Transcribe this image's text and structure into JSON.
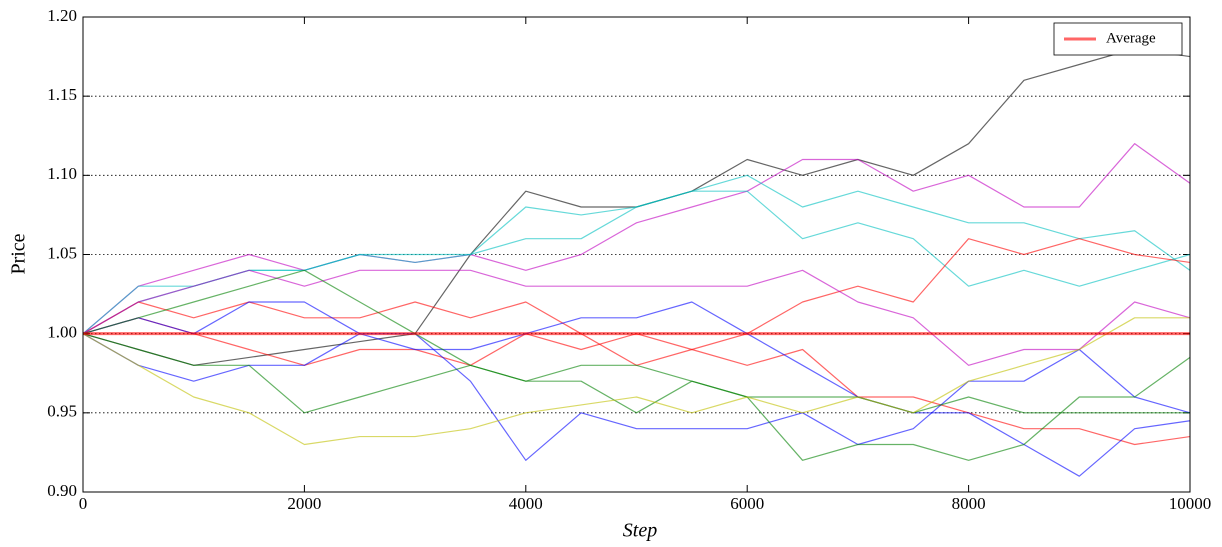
{
  "chart_data": {
    "type": "line",
    "xlabel": "Step",
    "ylabel": "Price",
    "x": [
      0,
      500,
      1000,
      1500,
      2000,
      2500,
      3000,
      3500,
      4000,
      4500,
      5000,
      5500,
      6000,
      6500,
      7000,
      7500,
      8000,
      8500,
      9000,
      9500,
      10000
    ],
    "series": [
      {
        "color": "#000000",
        "values": [
          1.0,
          0.99,
          0.98,
          0.985,
          0.99,
          0.995,
          1.0,
          1.05,
          1.09,
          1.08,
          1.08,
          1.09,
          1.11,
          1.1,
          1.11,
          1.1,
          1.12,
          1.16,
          1.17,
          1.18,
          1.175
        ]
      },
      {
        "color": "#bf00bf",
        "values": [
          1.0,
          1.03,
          1.04,
          1.05,
          1.04,
          1.05,
          1.045,
          1.05,
          1.04,
          1.05,
          1.07,
          1.08,
          1.09,
          1.11,
          1.11,
          1.09,
          1.1,
          1.08,
          1.08,
          1.12,
          1.095
        ]
      },
      {
        "color": "#00bfbf",
        "values": [
          1.0,
          1.03,
          1.03,
          1.04,
          1.04,
          1.05,
          1.045,
          1.05,
          1.08,
          1.075,
          1.08,
          1.09,
          1.1,
          1.08,
          1.09,
          1.08,
          1.07,
          1.07,
          1.06,
          1.065,
          1.04
        ]
      },
      {
        "color": "#00bfbf",
        "values": [
          1.0,
          1.02,
          1.03,
          1.04,
          1.04,
          1.05,
          1.05,
          1.05,
          1.06,
          1.06,
          1.08,
          1.09,
          1.09,
          1.06,
          1.07,
          1.06,
          1.03,
          1.04,
          1.03,
          1.04,
          1.05
        ]
      },
      {
        "color": "#ff0000",
        "values": [
          1.0,
          1.01,
          1.0,
          0.99,
          0.98,
          0.99,
          0.99,
          0.98,
          1.0,
          0.99,
          1.0,
          0.99,
          1.0,
          1.02,
          1.03,
          1.02,
          1.06,
          1.05,
          1.06,
          1.05,
          1.045
        ]
      },
      {
        "color": "#ff0000",
        "values": [
          1.0,
          1.02,
          1.01,
          1.02,
          1.01,
          1.01,
          1.02,
          1.01,
          1.02,
          1.0,
          0.98,
          0.99,
          0.98,
          0.99,
          0.96,
          0.96,
          0.95,
          0.94,
          0.94,
          0.93,
          0.935
        ]
      },
      {
        "color": "#bf00bf",
        "values": [
          1.0,
          1.02,
          1.03,
          1.04,
          1.03,
          1.04,
          1.04,
          1.04,
          1.03,
          1.03,
          1.03,
          1.03,
          1.03,
          1.04,
          1.02,
          1.01,
          0.98,
          0.99,
          0.99,
          1.02,
          1.01
        ]
      },
      {
        "color": "#0000ff",
        "values": [
          1.0,
          0.98,
          0.97,
          0.98,
          0.98,
          1.0,
          1.0,
          0.97,
          0.92,
          0.95,
          0.94,
          0.94,
          0.94,
          0.95,
          0.93,
          0.94,
          0.97,
          0.97,
          0.99,
          0.96,
          0.95
        ]
      },
      {
        "color": "#0000ff",
        "values": [
          1.0,
          1.01,
          1.0,
          1.02,
          1.02,
          1.0,
          0.99,
          0.99,
          1.0,
          1.01,
          1.01,
          1.02,
          1.0,
          0.98,
          0.96,
          0.95,
          0.95,
          0.93,
          0.91,
          0.94,
          0.945
        ]
      },
      {
        "color": "#008000",
        "values": [
          1.0,
          0.99,
          0.98,
          0.98,
          0.95,
          0.96,
          0.97,
          0.98,
          0.97,
          0.97,
          0.95,
          0.97,
          0.96,
          0.92,
          0.93,
          0.93,
          0.92,
          0.93,
          0.96,
          0.96,
          0.985
        ]
      },
      {
        "color": "#008000",
        "values": [
          1.0,
          1.01,
          1.02,
          1.03,
          1.04,
          1.02,
          1.0,
          0.98,
          0.97,
          0.98,
          0.98,
          0.97,
          0.96,
          0.96,
          0.96,
          0.95,
          0.96,
          0.95,
          0.95,
          0.95,
          0.95
        ]
      },
      {
        "color": "#bfbf00",
        "values": [
          1.0,
          0.98,
          0.96,
          0.95,
          0.93,
          0.935,
          0.935,
          0.94,
          0.95,
          0.955,
          0.96,
          0.95,
          0.96,
          0.95,
          0.96,
          0.95,
          0.97,
          0.98,
          0.99,
          1.01,
          1.01
        ]
      },
      {
        "name": "Average",
        "color": "#ff0000",
        "values": [
          1.0,
          1.0,
          1.0,
          1.0,
          1.0,
          1.0,
          1.0,
          1.0,
          1.0,
          1.0,
          1.0,
          1.0,
          1.0,
          1.0,
          1.0,
          1.0,
          1.0,
          1.0,
          1.0,
          1.0,
          1.0
        ]
      }
    ],
    "alpha": 0.6,
    "xlim": [
      0,
      10000
    ],
    "xticks": [
      0,
      2000,
      4000,
      6000,
      8000,
      10000
    ],
    "ylim": [
      0.9,
      1.2
    ],
    "yticks": [
      {
        "value": 0.9,
        "label": "0.90"
      },
      {
        "value": 0.95,
        "label": "0.95"
      },
      {
        "value": 1.0,
        "label": "1.00"
      },
      {
        "value": 1.05,
        "label": "1.05"
      },
      {
        "value": 1.1,
        "label": "1.10"
      },
      {
        "value": 1.15,
        "label": "1.15"
      },
      {
        "value": 1.2,
        "label": "1.20"
      }
    ],
    "grid": true,
    "legend": "upper right"
  }
}
